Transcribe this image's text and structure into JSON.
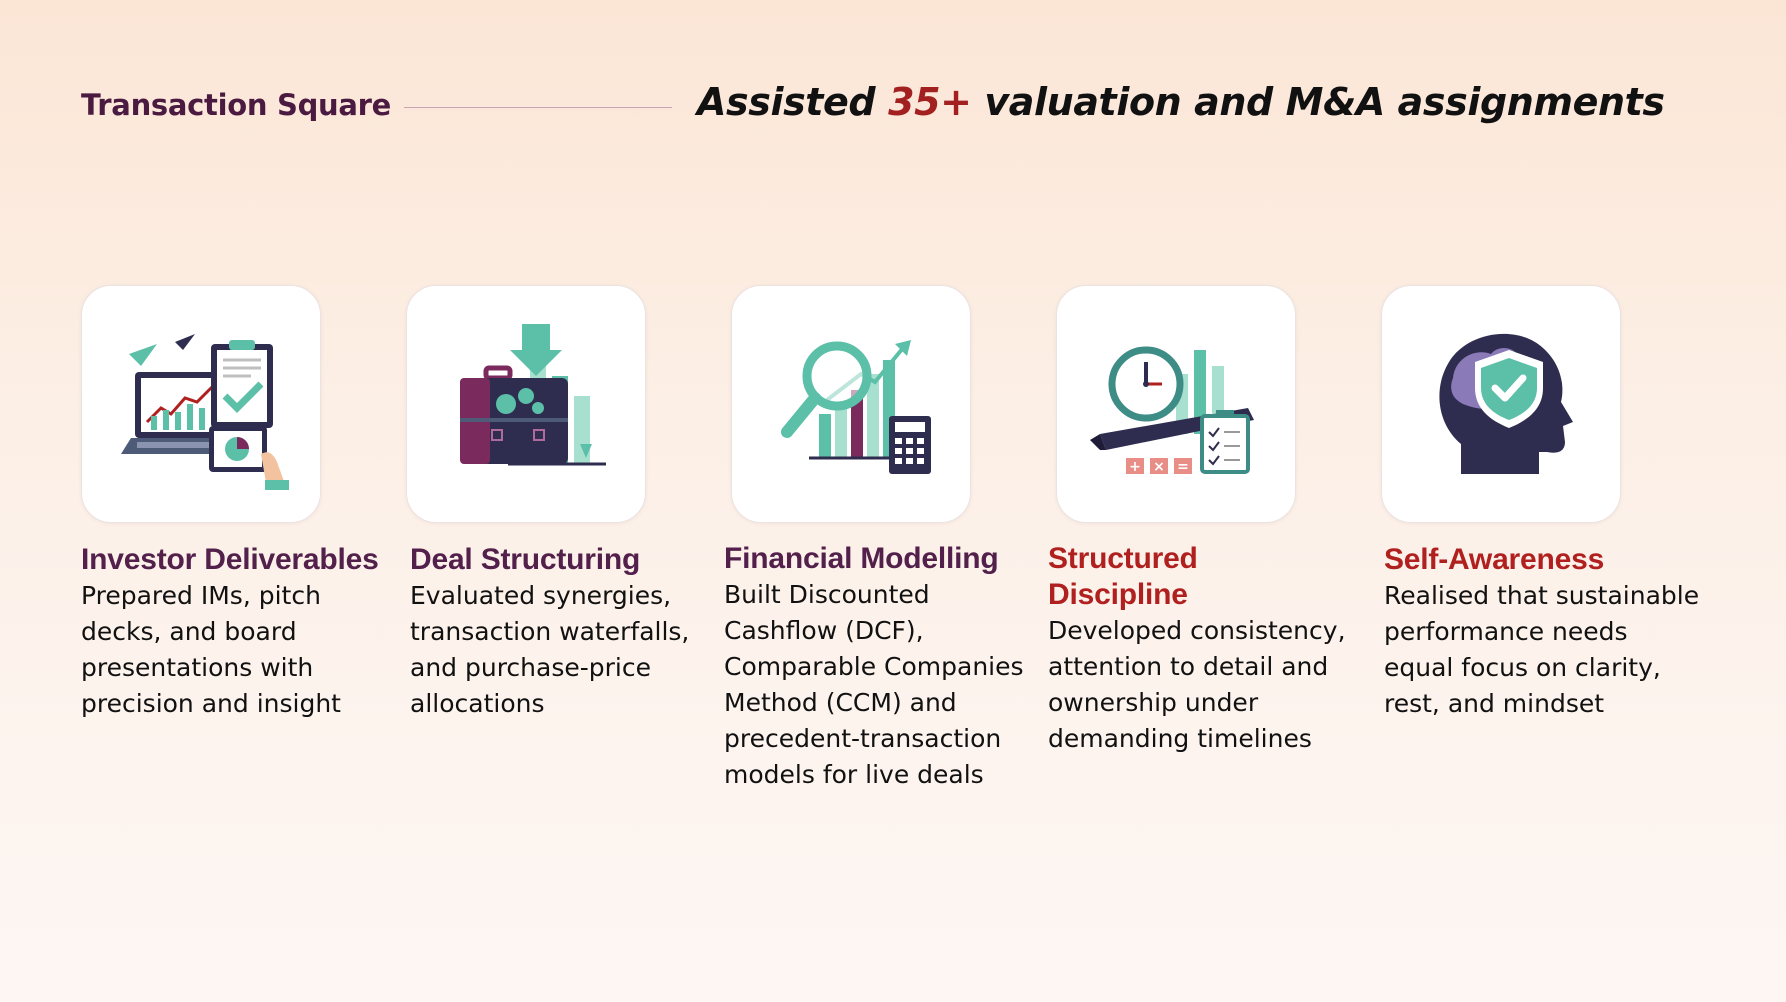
{
  "header": {
    "brand": "Transaction Square",
    "headline_pre": "Assisted ",
    "headline_highlight": "35+",
    "headline_post": " valuation and M&A assignments"
  },
  "colors": {
    "accent_purple": "#52204a",
    "accent_red": "#b0201e",
    "teal": "#5cbfa8",
    "navy": "#2f2d4f"
  },
  "cards": [
    {
      "icon": "investor-deliverables-icon",
      "title": "Investor Deliverables",
      "title_color": "purple",
      "lines": [
        "Prepared IMs, pitch",
        "decks, and board",
        "presentations with",
        "precision and insight"
      ]
    },
    {
      "icon": "deal-structuring-icon",
      "title": "Deal Structuring",
      "title_color": "purple",
      "lines": [
        "Evaluated synergies,",
        "transaction waterfalls,",
        "and purchase-price",
        "allocations"
      ]
    },
    {
      "icon": "financial-modelling-icon",
      "title": "Financial Modelling",
      "title_color": "purple",
      "lines": [
        "Built Discounted",
        "Cashflow (DCF),",
        "Comparable Companies",
        "Method (CCM) and",
        "precedent-transaction",
        "models for live deals"
      ]
    },
    {
      "icon": "structured-discipline-icon",
      "title_lines": [
        "Structured",
        "Discipline"
      ],
      "title_color": "red",
      "lines": [
        "Developed consistency,",
        "attention to detail and",
        "ownership under",
        "demanding timelines"
      ]
    },
    {
      "icon": "self-awareness-icon",
      "title": "Self-Awareness",
      "title_color": "red",
      "lines": [
        "Realised that sustainable",
        "performance needs",
        "equal focus on clarity,",
        "rest, and mindset"
      ]
    }
  ]
}
